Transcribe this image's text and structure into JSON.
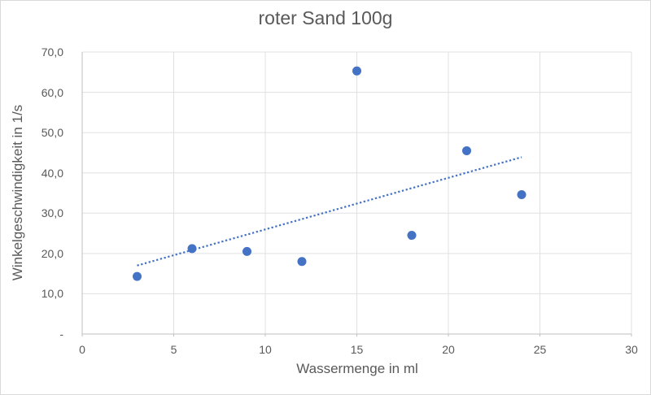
{
  "chart_data": {
    "type": "scatter",
    "title": "roter Sand 100g",
    "xlabel": "Wassermenge in ml",
    "ylabel": "Winkelgeschwindigkeit in 1/s",
    "xlim": [
      0,
      30
    ],
    "ylim": [
      0,
      70
    ],
    "grid": true,
    "legend": false,
    "x_ticks": [
      0,
      5,
      10,
      15,
      20,
      25,
      30
    ],
    "x_tick_labels": [
      "0",
      "5",
      "10",
      "15",
      "20",
      "25",
      "30"
    ],
    "y_ticks": [
      0,
      10,
      20,
      30,
      40,
      50,
      60,
      70
    ],
    "y_tick_labels": [
      "-",
      "10,0",
      "20,0",
      "30,0",
      "40,0",
      "50,0",
      "60,0",
      "70,0"
    ],
    "series": [
      {
        "name": "roter Sand 100g",
        "x": [
          3,
          6,
          9,
          12,
          15,
          18,
          21,
          24
        ],
        "y": [
          14.3,
          21.2,
          20.5,
          18.0,
          65.3,
          24.5,
          45.5,
          34.6
        ]
      }
    ],
    "trendline": {
      "style": "dotted",
      "x1": 3,
      "y1": 17.0,
      "x2": 24,
      "y2": 43.9
    },
    "colors": {
      "point": "#4472c4",
      "trendline": "#4472c4",
      "gridline": "#e0e0e0",
      "axis": "#bfbfbf",
      "text": "#595959"
    }
  }
}
